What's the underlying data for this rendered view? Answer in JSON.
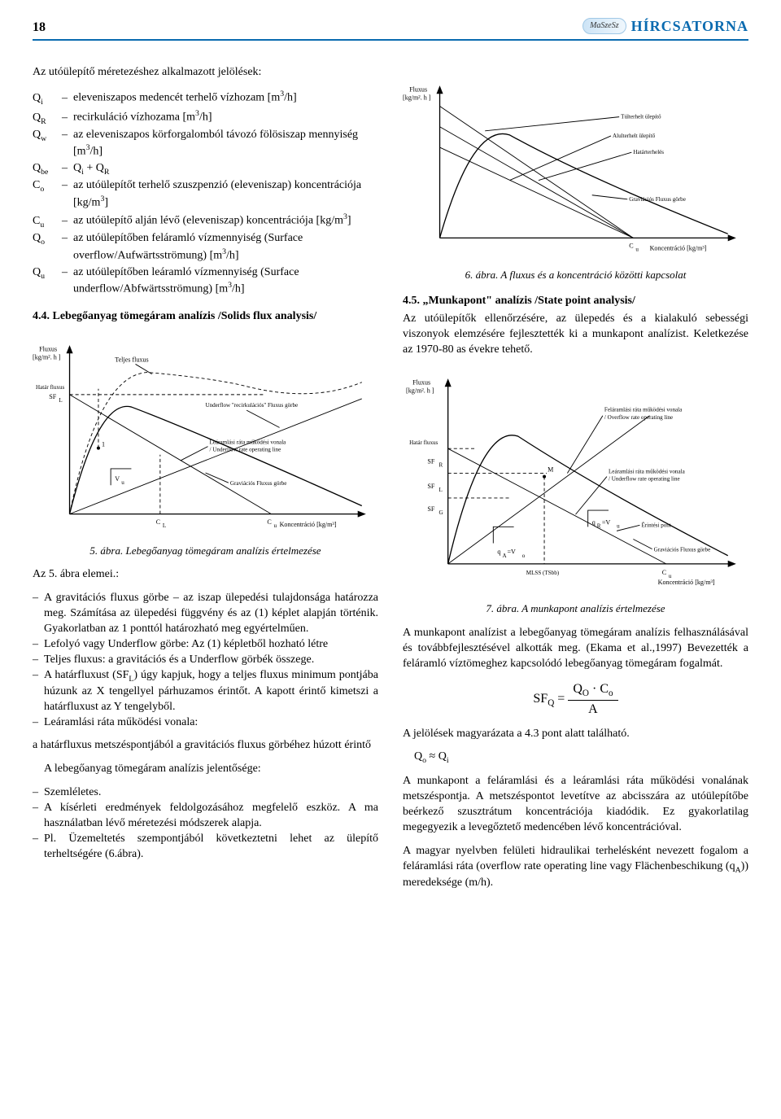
{
  "header": {
    "page_number": "18",
    "logo_text": "MaSzeSz",
    "brand": "HÍRCSATORNA"
  },
  "left": {
    "defs_intro": "Az utóülepítő méretezéshez alkalmazott jelölések:",
    "defs": [
      {
        "sym": "Q<sub>i</sub>",
        "desc": "eleveniszapos medencét terhelő vízhozam [m<sup>3</sup>/h]"
      },
      {
        "sym": "Q<sub>R</sub>",
        "desc": "recirkuláció vízhozama [m<sup>3</sup>/h]"
      },
      {
        "sym": "Q<sub>w</sub>",
        "desc": "az eleveniszapos körforgalomból távozó fölösiszap mennyiség [m<sup>3</sup>/h]"
      },
      {
        "sym": "Q<sub>be</sub>",
        "desc": "Q<sub>i</sub> + Q<sub>R</sub>"
      },
      {
        "sym": "C<sub>o</sub>",
        "desc": "az utóülepítőt terhelő szuszpenzió (eleveniszap) koncentrációja [kg/m<sup>3</sup>]"
      },
      {
        "sym": "C<sub>u</sub>",
        "desc": "az utóülepítő alján lévő (eleveniszap) koncentrációja [kg/m<sup>3</sup>]"
      },
      {
        "sym": "Q<sub>o</sub>",
        "desc": "az utóülepítőben feláramló vízmennyiség (Surface overflow/Aufwärtsströmung) [m<sup>3</sup>/h]"
      },
      {
        "sym": "Q<sub>u</sub>",
        "desc": "az utóülepítőben leáramló vízmennyiség (Surface underflow/Abfwärtsströmung) [m<sup>3</sup>/h]"
      }
    ],
    "sect44": "4.4. Lebegőanyag tömegáram analízis /Solids flux analysis/",
    "fig5_caption": "5. ábra. Lebegőanyag tömegáram analízis értelmezése",
    "az5_lead": "Az  5. ábra elemei.:",
    "az5_items": [
      "A gravitációs fluxus görbe – az iszap ülepedési tulajdonsága határozza meg. Számítása az ülepedési függvény és az (1) képlet alapján történik. Gyakorlatban az 1 ponttól határozható meg egyértelműen.",
      "Lefolyó vagy Underflow görbe: Az (1) képletből hozható létre",
      "Teljes fluxus: a gravitációs és a Underflow görbék összege.",
      "A határfluxust (SF<sub>L</sub>) úgy kapjuk, hogy a teljes fluxus minimum pontjába húzunk az X tengellyel párhuzamos érintőt. A kapott érintő kimetszi a határfluxust az Y tengelyből.",
      "Leáramlási ráta működési vonala:"
    ],
    "az5_tail1": "a határfluxus metszéspontjából a gravitációs fluxus görbéhez húzott érintő",
    "az5_tail2": "A lebegőanyag tömegáram analízis jelentősége:",
    "az5_items2": [
      "Szemléletes.",
      "A kísérleti eredmények feldolgozásához megfelelő eszköz. A ma használatban lévő méretezési módszerek alapja.",
      "Pl. Üzemeltetés szempontjából következtetni lehet az ülepítő terheltségére (6.ábra)."
    ]
  },
  "right": {
    "fig6_caption": "6. ábra. A fluxus és a koncentráció közötti kapcsolat",
    "sect45": "4.5. „Munkapont\" analízis /State point analysis/",
    "p45": "Az utóülepítők ellenőrzésére, az ülepedés és a kialakuló sebességi viszonyok elemzésére fejlesztették ki a munkapont analízist. Keletkezése az 1970-80 as évekre tehető.",
    "fig7_caption": "7. ábra. A munkapont analízis értelmezése",
    "p7a": "A munkapont analízist a lebegőanyag tömegáram analízis felhasználásával és továbbfejlesztésével alkották meg. (Ekama et al.,1997) Bevezették a feláramló víztömeghez kapcsolódó lebegőanyag tömegáram fogalmát.",
    "eq_lhs": "SF<sub>Q</sub> =",
    "eq_num": "Q<sub>O</sub> · C<sub>o</sub>",
    "eq_den": "A",
    "p7b": "A jelölések magyarázata a 4.3 pont alatt található.",
    "p7c": "Q<sub>o</sub> ≈ Q<sub>i</sub>",
    "p7d": "A munkapont a feláramlási és a leáramlási ráta működési vonalának metszéspontja. A metszéspontot levetítve az abcisszára az utóülepítőbe beérkező szusztrátum koncentrációja kiadódik. Ez gyakorlatilag megegyezik a levegőztető medencében lévő koncentrációval.",
    "p7e": "A magyar nyelvben felületi hidraulikai terhelésként nevezett fogalom a feláramlási ráta (overflow rate operating line vagy Flächenbeschikung (q<sub>A</sub>)) meredeksége (m/h)."
  },
  "fig5": {
    "type": "line-chart",
    "ylabel1": "Fluxus",
    "ylabel2": "[kg/m². h ]",
    "xlabel": "Koncentráció [kg/m³]",
    "annot": {
      "teljes": "Teljes fluxus",
      "underflow": "Underflow \"recirkulációs\" Fluxus görbe",
      "learamlasi1": "Leáramlási ráta működési vonala",
      "learamlasi2": "/ Underflow rate operating line",
      "grav": "Graviációs Fluxus görbe",
      "hatarsF": "Határ fluxus",
      "sfl": "SF",
      "vu": "V",
      "vu_sub": "u",
      "one": "1",
      "cl": "C",
      "cl_sub": "L",
      "cu": "C",
      "cu_sub": "u"
    }
  },
  "fig6": {
    "type": "line-chart",
    "ylabel1": "Fluxus",
    "ylabel2": "[kg/m². h ]",
    "xlabel": "Koncentráció [kg/m³]",
    "annot": {
      "tulterhelt": "Túlterhelt ülepítő",
      "alul": "Alulterhelt ülepítő",
      "hatar": "Határterhelés",
      "grav": "Graviációs Fluxus görbe",
      "cu": "C",
      "cu_sub": "u"
    }
  },
  "fig7": {
    "type": "line-chart",
    "ylabel1": "Fluxus",
    "ylabel2": "[kg/m². h ]",
    "xlabel": "Koncentráció [kg/m³]",
    "annot": {
      "hatar": "Határ fluxus",
      "felaramlasi1": "Feláramlási ráta működési vonala",
      "felaramlasi2": "/ Overflow rate operating line",
      "learamlasi1": "Leáramlási ráta működési vonala",
      "learamlasi2": "/ Underflow rate operating line",
      "erint": "Érintési pont",
      "grav": "Graviációs Fluxus görbe",
      "mlss": "MLSS (TSbb)",
      "cu": "C",
      "cu_sub": "u",
      "M": "M",
      "sf_r": "SF",
      "sf_r_sub": "R",
      "sf_l": "SF",
      "sf_l_sub": "L",
      "sf_g": "SF",
      "sf_g_sub": "G",
      "qr": "q",
      "qr_sub": "R",
      "qr_eq": "=V",
      "qr_eq_sub": "u",
      "qa": "q",
      "qa_sub": "A",
      "qa_eq": "=V",
      "qa_eq_sub": "o"
    }
  },
  "colors": {
    "header_rule": "#0a6bb0",
    "brand": "#0a6bb0",
    "text": "#000000"
  }
}
